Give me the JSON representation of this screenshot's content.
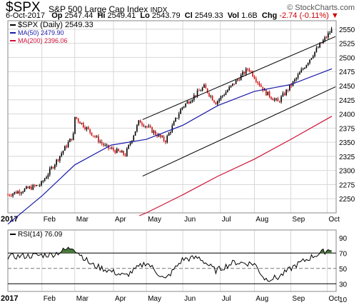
{
  "header": {
    "symbol": "$SPX",
    "name": "S&P 500 Large Cap Index",
    "exchange": "INDX",
    "brand": "© StockCharts.com",
    "date": "6-Oct-2017",
    "open_label": "Op",
    "open": "2547.44",
    "high_label": "Hi",
    "high": "2549.41",
    "low_label": "Lo",
    "low": "2543.79",
    "close_label": "Cl",
    "close": "2549.33",
    "vol_label": "Vol",
    "vol": "1.6B",
    "chg_label": "Chg",
    "chg": "-2.74 (-0.11%)",
    "chg_arrow": "▼"
  },
  "colors": {
    "price": "#000000",
    "ma50": "#1a1aa8",
    "ma200": "#d0103a",
    "up": "#000000",
    "down": "#d01010",
    "rsi_fill": "#4a7a3a",
    "grid": "#d8d8d8"
  },
  "chart_data": [
    {
      "type": "line",
      "title": "$SPX (Daily) 2549.33",
      "series": [
        {
          "name": "$SPX (Daily) 2549.33",
          "x": [
            "2017-01-03",
            "2017-01-31",
            "2017-02-28",
            "2017-03-01",
            "2017-03-27",
            "2017-04-13",
            "2017-04-25",
            "2017-05-17",
            "2017-05-31",
            "2017-06-19",
            "2017-06-29",
            "2017-07-27",
            "2017-08-10",
            "2017-08-21",
            "2017-09-05",
            "2017-09-20",
            "2017-10-06"
          ],
          "values": [
            2257,
            2275,
            2363,
            2395,
            2342,
            2328,
            2388,
            2352,
            2411,
            2448,
            2420,
            2481,
            2439,
            2421,
            2461,
            2506,
            2549
          ]
        },
        {
          "name": "MA(50) 2479.90",
          "x": [
            "2017-01-03",
            "2017-02-01",
            "2017-03-01",
            "2017-04-01",
            "2017-05-01",
            "2017-06-01",
            "2017-07-01",
            "2017-08-01",
            "2017-09-01",
            "2017-10-06"
          ],
          "values": [
            2205,
            2255,
            2310,
            2345,
            2355,
            2380,
            2415,
            2440,
            2452,
            2480
          ]
        },
        {
          "name": "MA(200) 2396.06",
          "x": [
            "2017-04-25",
            "2017-05-01",
            "2017-06-01",
            "2017-07-01",
            "2017-08-01",
            "2017-09-01",
            "2017-10-06"
          ],
          "values": [
            2220,
            2225,
            2257,
            2290,
            2320,
            2355,
            2396
          ]
        }
      ],
      "trend_channel": [
        {
          "x": [
            "2017-03-01",
            "2017-10-06"
          ],
          "values": [
            2390,
            2537
          ]
        },
        {
          "x": [
            "2017-03-01",
            "2017-10-06"
          ],
          "values": [
            2290,
            2448
          ]
        }
      ],
      "ylim": [
        2225,
        2565
      ],
      "y_ticks": [
        "2550",
        "2525",
        "2500",
        "2475",
        "2450",
        "2425",
        "2400",
        "2375",
        "2350",
        "2325",
        "2300",
        "2275",
        "2250"
      ],
      "x_ticks": [
        "2017",
        "Feb",
        "Mar",
        "Apr",
        "May",
        "Jun",
        "Jul",
        "Aug",
        "Sep",
        "Oct"
      ],
      "grid": true
    },
    {
      "type": "line",
      "title": "RSI(14) 76.09",
      "series": [
        {
          "name": "RSI(14) 76.09",
          "x": [
            "2017-01-03",
            "2017-02-10",
            "2017-02-28",
            "2017-03-01",
            "2017-03-15",
            "2017-04-13",
            "2017-05-01",
            "2017-05-17",
            "2017-06-01",
            "2017-06-15",
            "2017-06-29",
            "2017-07-15",
            "2017-08-01",
            "2017-08-10",
            "2017-08-21",
            "2017-09-05",
            "2017-09-20",
            "2017-10-06"
          ],
          "values": [
            65,
            68,
            78,
            75,
            55,
            40,
            58,
            35,
            62,
            64,
            47,
            58,
            56,
            36,
            38,
            54,
            66,
            76.09
          ]
        }
      ],
      "ylim": [
        20,
        100
      ],
      "y_ticks": [
        "90",
        "70",
        "50",
        "30",
        "10"
      ],
      "levels": [
        70,
        50,
        30
      ],
      "x_ticks": [
        "2017",
        "Feb",
        "Mar",
        "Apr",
        "May",
        "Jun",
        "Jul",
        "Aug",
        "Sep",
        "Oct"
      ],
      "grid": true
    }
  ]
}
